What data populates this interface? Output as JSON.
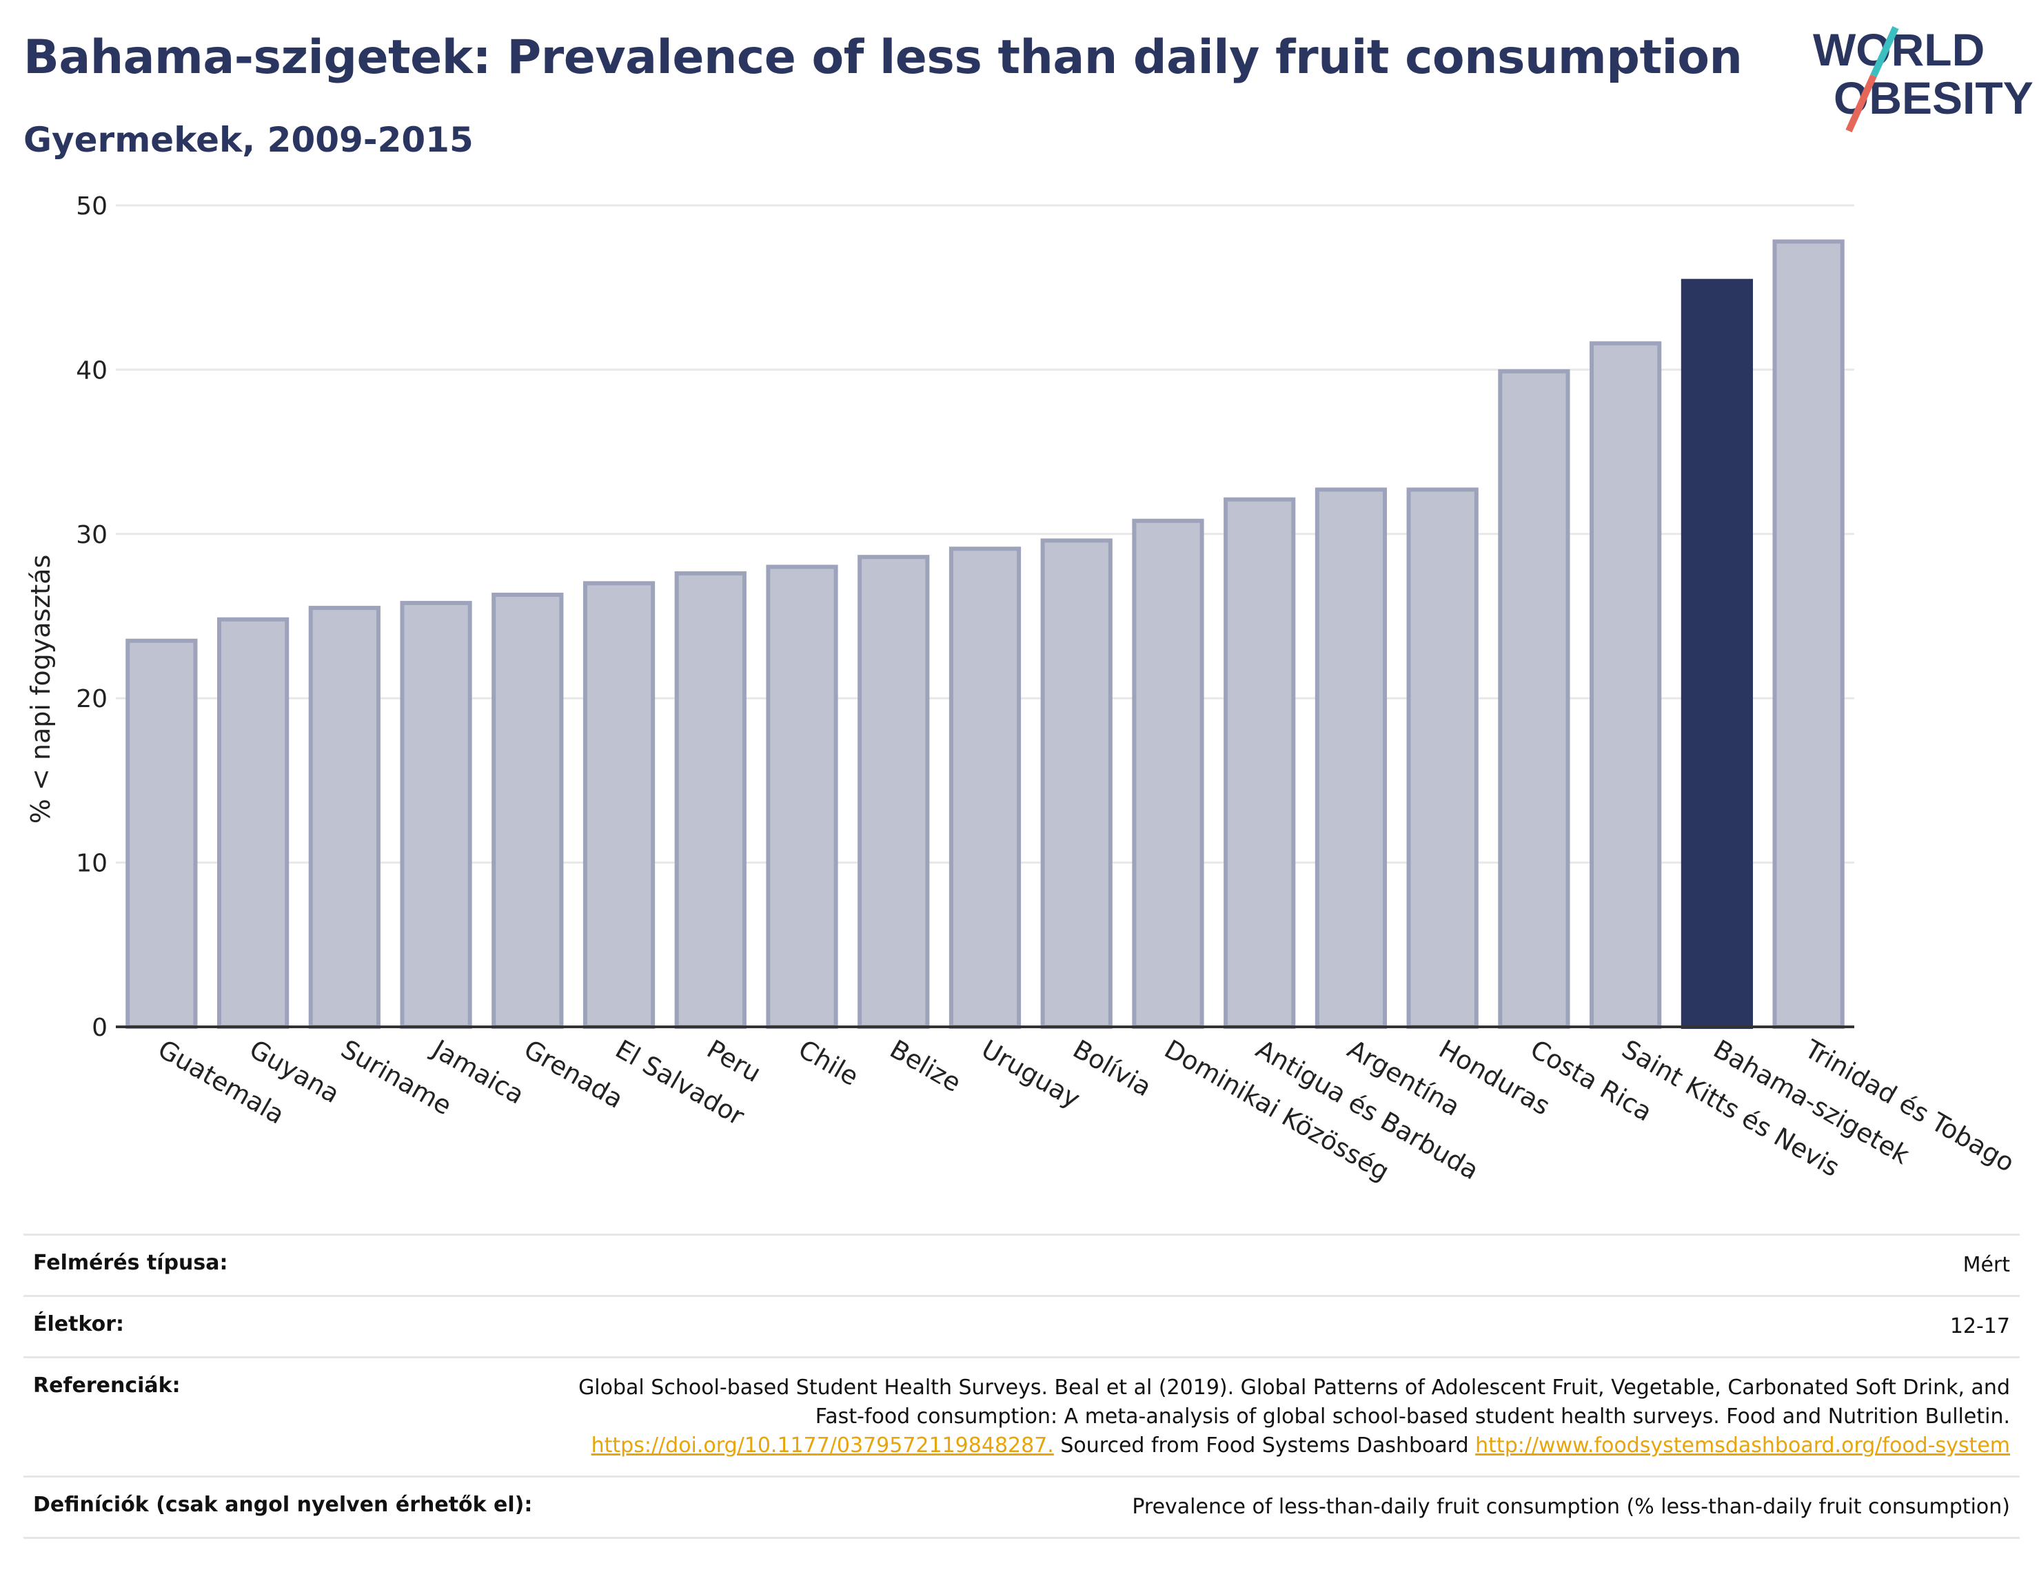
{
  "header": {
    "title": "Bahama-szigetek: Prevalence of less than daily fruit consumption",
    "subtitle": "Gyermekek, 2009-2015"
  },
  "logo": {
    "line1": "WORLD",
    "line2": "OBESITY",
    "accent_colors": [
      "#3bbfc1",
      "#e5675a"
    ]
  },
  "chart_data": {
    "type": "bar",
    "ylabel": "% < napi fogyasztás",
    "ylim": [
      0,
      50
    ],
    "yticks": [
      0,
      10,
      20,
      30,
      40,
      50
    ],
    "grid": true,
    "categories": [
      "Guatemala",
      "Guyana",
      "Suriname",
      "Jamaica",
      "Grenada",
      "El Salvador",
      "Peru",
      "Chile",
      "Belize",
      "Uruguay",
      "Bolívia",
      "Dominikai Közösség",
      "Antigua és Barbuda",
      "Argentína",
      "Honduras",
      "Costa Rica",
      "Saint Kitts és Nevis",
      "Bahama-szigetek",
      "Trinidad és Tobago"
    ],
    "values": [
      23.5,
      24.8,
      25.5,
      25.8,
      26.3,
      27.0,
      27.6,
      28.0,
      28.6,
      29.1,
      29.6,
      30.8,
      32.1,
      32.7,
      32.7,
      39.9,
      41.6,
      45.4,
      47.8
    ],
    "highlight": "Bahama-szigetek",
    "colors": {
      "bar": "#bfc3d1",
      "bar_border": "#9da3bb",
      "highlight": "#2b3660",
      "grid": "#e8e8e8",
      "axis": "#333333"
    }
  },
  "info": {
    "survey_label": "Felmérés típusa:",
    "survey_value": "Mért",
    "age_label": "Életkor:",
    "age_value": "12-17",
    "refs_label": "Referenciák:",
    "refs_text1": "Global School-based Student Health Surveys. Beal et al (2019). Global Patterns of Adolescent Fruit, Vegetable, Carbonated Soft Drink, and Fast-food consumption: A meta-analysis of global school-based student health surveys. Food and Nutrition Bulletin.",
    "refs_link1": "https://doi.org/10.1177/0379572119848287.",
    "refs_text2": " Sourced from Food Systems Dashboard ",
    "refs_link2": "http://www.foodsystemsdashboard.org/food-system",
    "defs_label": "Definíciók (csak angol nyelven érhetők el):",
    "defs_value": "Prevalence of less-than-daily fruit consumption (% less-than-daily fruit consumption)"
  }
}
